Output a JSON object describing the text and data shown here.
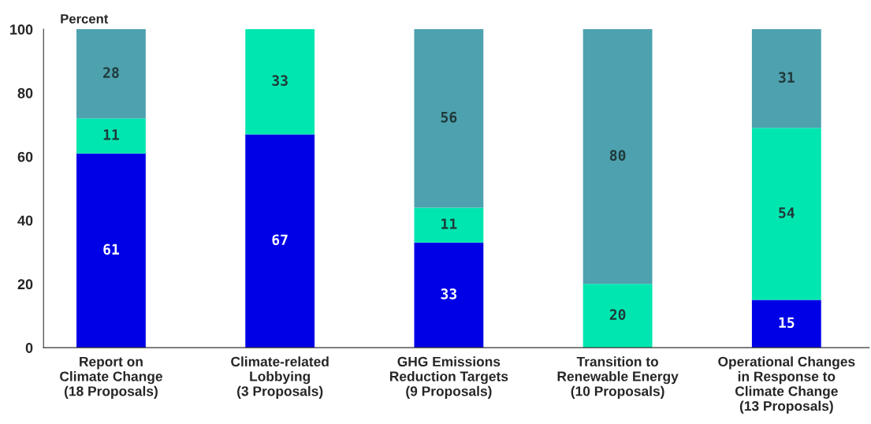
{
  "chart_data": {
    "type": "bar",
    "stacked": true,
    "ylabel": "Percent",
    "categories": [
      "Report on\nClimate Change\n(18 Proposals)",
      "Climate-related\nLobbying\n(3 Proposals)",
      "GHG Emissions\nReduction Targets\n(9 Proposals)",
      "Transition to\nRenewable Energy\n(10 Proposals)",
      "Operational Changes\nin Response to\nClimate Change\n(13 Proposals)"
    ],
    "series": [
      {
        "color": "#0000e6",
        "values": [
          61,
          67,
          33,
          null,
          15
        ]
      },
      {
        "color": "#00e6b0",
        "values": [
          11,
          33,
          11,
          20,
          54
        ]
      },
      {
        "color": "#4ea1af",
        "values": [
          28,
          null,
          56,
          80,
          31
        ]
      }
    ],
    "ylim": [
      0,
      100
    ],
    "yticks": [
      0,
      20,
      40,
      60,
      80,
      100
    ],
    "grid": false,
    "data_labels": true,
    "legend": false
  }
}
